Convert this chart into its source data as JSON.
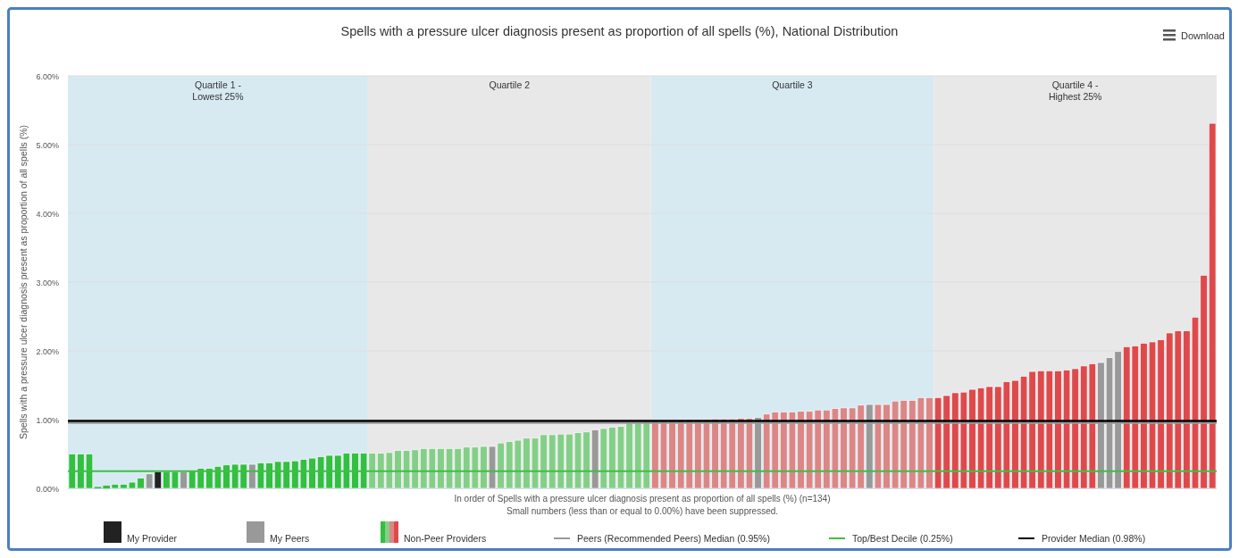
{
  "chart_data": {
    "type": "bar",
    "title": "Spells with a pressure ulcer diagnosis present as proportion of all spells (%), National Distribution",
    "xlabel": "In order of Spells with a pressure ulcer diagnosis present as proportion of all spells (%) (n=134)",
    "ylabel": "Spells with a pressure ulcer diagnosis present as proportion of all spells (%)",
    "annotations": [
      "Small numbers (less than or equal to 0.00%) have been suppressed.",
      "Download",
      "Quartile 1 -\nLowest 25%",
      "Quartile 2",
      "Quartile 3",
      "Quartile 4 -\nHighest 25%"
    ],
    "categories": [
      null,
      null,
      null,
      null,
      null,
      null,
      null,
      null,
      null,
      null,
      null,
      null,
      null,
      null,
      null,
      null,
      null,
      null,
      null,
      null,
      null,
      null,
      null,
      null,
      null,
      null,
      null,
      null,
      null,
      null,
      null,
      null,
      null,
      null,
      null,
      null,
      null,
      null,
      null,
      null,
      null,
      null,
      null,
      null,
      null,
      null,
      null,
      null,
      null,
      null,
      null,
      null,
      null,
      null,
      null,
      null,
      null,
      null,
      null,
      null,
      null,
      null,
      null,
      null,
      null,
      null,
      null,
      null,
      null,
      null,
      null,
      null,
      null,
      null,
      null,
      null,
      null,
      null,
      null,
      null,
      null,
      null,
      null,
      null,
      null,
      null,
      null,
      null,
      null,
      null,
      null,
      null,
      null,
      null,
      null,
      null,
      null,
      null,
      null,
      null,
      null,
      null,
      null,
      null,
      null,
      null,
      null,
      null,
      null,
      null,
      null,
      null,
      null,
      null,
      null,
      null,
      null,
      null,
      null,
      null,
      null,
      null,
      null,
      null,
      null,
      null,
      null,
      null,
      null,
      null,
      null,
      null,
      null,
      null
    ],
    "stacked": true,
    "series": [
      {
        "name": "My Provider",
        "color": "#222222",
        "values": [
          null,
          null,
          null,
          null,
          null,
          null,
          null,
          null,
          null,
          null,
          0.24,
          null,
          null,
          null,
          null,
          null,
          null,
          null,
          null,
          null,
          null,
          null,
          null,
          null,
          null,
          null,
          null,
          null,
          null,
          null,
          null,
          null,
          null,
          null,
          null,
          null,
          null,
          null,
          null,
          null,
          null,
          null,
          null,
          null,
          null,
          null,
          null,
          null,
          null,
          null,
          null,
          null,
          null,
          null,
          null,
          null,
          null,
          null,
          null,
          null,
          null,
          null,
          null,
          null,
          null,
          null,
          null,
          null,
          null,
          null,
          null,
          null,
          null,
          null,
          null,
          null,
          null,
          null,
          null,
          null,
          null,
          null,
          null,
          null,
          null,
          null,
          null,
          null,
          null,
          null,
          null,
          null,
          null,
          null,
          null,
          null,
          null,
          null,
          null,
          null,
          null,
          null,
          null,
          null,
          null,
          null,
          null,
          null,
          null,
          null,
          null,
          null,
          null,
          null,
          null,
          null,
          null,
          null,
          null,
          null,
          null,
          null,
          null,
          null,
          null,
          null,
          null,
          null,
          null,
          null,
          null,
          null,
          null,
          null
        ]
      },
      {
        "name": "My Peers",
        "color": "#999999",
        "values": [
          null,
          null,
          null,
          null,
          null,
          null,
          null,
          null,
          null,
          0.21,
          null,
          null,
          null,
          0.24,
          null,
          null,
          null,
          null,
          null,
          null,
          null,
          0.35,
          null,
          null,
          null,
          null,
          null,
          null,
          null,
          null,
          null,
          null,
          null,
          null,
          null,
          null,
          null,
          null,
          null,
          null,
          null,
          null,
          null,
          null,
          null,
          null,
          null,
          null,
          null,
          0.61,
          null,
          null,
          null,
          null,
          null,
          null,
          null,
          null,
          null,
          null,
          null,
          0.85,
          null,
          null,
          null,
          null,
          null,
          null,
          null,
          null,
          null,
          null,
          null,
          null,
          null,
          null,
          null,
          null,
          null,
          null,
          1.03,
          null,
          null,
          null,
          null,
          null,
          null,
          null,
          null,
          null,
          null,
          null,
          null,
          1.22,
          null,
          null,
          null,
          null,
          null,
          null,
          null,
          null,
          null,
          null,
          null,
          null,
          null,
          null,
          null,
          null,
          null,
          null,
          null,
          null,
          null,
          null,
          null,
          null,
          null,
          null,
          1.83,
          1.9,
          1.99,
          null,
          null,
          null,
          null,
          null,
          null,
          null,
          null,
          null,
          null,
          null
        ]
      },
      {
        "name": "Non-Peer Providers",
        "colors": [
          "#33bf40",
          "#33bf40",
          "#33bf40",
          "#33bf40",
          "#33bf40",
          "#33bf40",
          "#33bf40",
          "#33bf40",
          "#33bf40",
          "#33bf40",
          "#33bf40",
          "#33bf40",
          "#33bf40",
          "#33bf40",
          "#33bf40",
          "#33bf40",
          "#33bf40",
          "#33bf40",
          "#33bf40",
          "#33bf40",
          "#33bf40",
          "#33bf40",
          "#33bf40",
          "#33bf40",
          "#33bf40",
          "#33bf40",
          "#33bf40",
          "#33bf40",
          "#33bf40",
          "#33bf40",
          "#33bf40",
          "#33bf40",
          "#33bf40",
          "#33bf40",
          "#33bf40",
          "#84cf88",
          "#84cf88",
          "#84cf88",
          "#84cf88",
          "#84cf88",
          "#84cf88",
          "#84cf88",
          "#84cf88",
          "#84cf88",
          "#84cf88",
          "#84cf88",
          "#84cf88",
          "#84cf88",
          "#84cf88",
          "#84cf88",
          "#84cf88",
          "#84cf88",
          "#84cf88",
          "#84cf88",
          "#84cf88",
          "#84cf88",
          "#84cf88",
          "#84cf88",
          "#84cf88",
          "#84cf88",
          "#84cf88",
          "#84cf88",
          "#84cf88",
          "#84cf88",
          "#84cf88",
          "#84cf88",
          "#84cf88",
          "#84cf88",
          "#dc8686",
          "#dc8686",
          "#dc8686",
          "#dc8686",
          "#dc8686",
          "#dc8686",
          "#dc8686",
          "#dc8686",
          "#dc8686",
          "#dc8686",
          "#dc8686",
          "#dc8686",
          "#dc8686",
          "#dc8686",
          "#dc8686",
          "#dc8686",
          "#dc8686",
          "#dc8686",
          "#dc8686",
          "#dc8686",
          "#dc8686",
          "#dc8686",
          "#dc8686",
          "#dc8686",
          "#dc8686",
          "#dc8686",
          "#dc8686",
          "#dc8686",
          "#dc8686",
          "#dc8686",
          "#dc8686",
          "#dc8686",
          "#dc8686",
          "#de4a4c",
          "#de4a4c",
          "#de4a4c",
          "#de4a4c",
          "#de4a4c",
          "#de4a4c",
          "#de4a4c",
          "#de4a4c",
          "#de4a4c",
          "#de4a4c",
          "#de4a4c",
          "#de4a4c",
          "#de4a4c",
          "#de4a4c",
          "#de4a4c",
          "#de4a4c",
          "#de4a4c",
          "#de4a4c",
          "#de4a4c",
          "#de4a4c",
          "#de4a4c",
          "#de4a4c",
          "#de4a4c",
          "#de4a4c",
          "#de4a4c",
          "#de4a4c",
          "#de4a4c",
          "#de4a4c",
          "#de4a4c",
          "#de4a4c",
          "#de4a4c",
          "#de4a4c",
          "#de4a4c"
        ],
        "values": [
          0.5,
          0.5,
          0.5,
          0.02,
          0.04,
          0.06,
          0.06,
          0.09,
          0.15,
          null,
          null,
          0.24,
          0.24,
          null,
          0.26,
          0.29,
          0.29,
          0.32,
          0.34,
          0.35,
          0.35,
          null,
          0.37,
          0.37,
          0.39,
          0.39,
          0.4,
          0.42,
          0.44,
          0.46,
          0.48,
          0.48,
          0.51,
          0.51,
          0.51,
          0.51,
          0.51,
          0.52,
          0.55,
          0.55,
          0.56,
          0.58,
          0.58,
          0.58,
          0.58,
          0.58,
          0.6,
          0.6,
          0.61,
          null,
          0.66,
          0.68,
          0.7,
          0.73,
          0.73,
          0.78,
          0.78,
          0.79,
          0.79,
          0.81,
          0.82,
          null,
          0.87,
          0.89,
          0.9,
          0.96,
          0.97,
          0.98,
          0.99,
          0.99,
          0.99,
          1.0,
          1.0,
          1.0,
          1.0,
          1.01,
          1.01,
          1.01,
          1.02,
          1.02,
          null,
          1.08,
          1.11,
          1.11,
          1.11,
          1.12,
          1.12,
          1.14,
          1.14,
          1.16,
          1.17,
          1.17,
          1.21,
          null,
          1.22,
          1.22,
          1.27,
          1.28,
          1.28,
          1.32,
          1.32,
          1.32,
          1.35,
          1.39,
          1.4,
          1.44,
          1.46,
          1.48,
          1.48,
          1.55,
          1.57,
          1.63,
          1.7,
          1.71,
          1.71,
          1.71,
          1.72,
          1.74,
          1.78,
          1.81,
          null,
          null,
          null,
          2.06,
          2.07,
          2.11,
          2.13,
          2.16,
          2.26,
          2.29,
          2.29,
          2.49,
          3.1,
          5.31
        ]
      }
    ],
    "ylim": [
      0,
      6
    ],
    "yticks": [
      {
        "value": 0,
        "label": "0.00%"
      },
      {
        "value": 1,
        "label": "1.00%"
      },
      {
        "value": 2,
        "label": "2.00%"
      },
      {
        "value": 3,
        "label": "3.00%"
      },
      {
        "value": 4,
        "label": "4.00%"
      },
      {
        "value": 5,
        "label": "5.00%"
      },
      {
        "value": 6,
        "label": "6.00%"
      }
    ],
    "grid": "y",
    "tick_labels": "y",
    "legend": "bottom",
    "ref_lines": [
      {
        "axis": "y",
        "value": 0.95,
        "label": "Peers (Recommended Peers) Median (0.95%)",
        "color": "#999999"
      },
      {
        "axis": "y",
        "value": 0.25,
        "label": "Top/Best Decile (0.25%)",
        "color": "#3cc043"
      },
      {
        "axis": "y",
        "value": 0.98,
        "label": "Provider Median (0.98%)",
        "color": "#000000"
      }
    ]
  }
}
